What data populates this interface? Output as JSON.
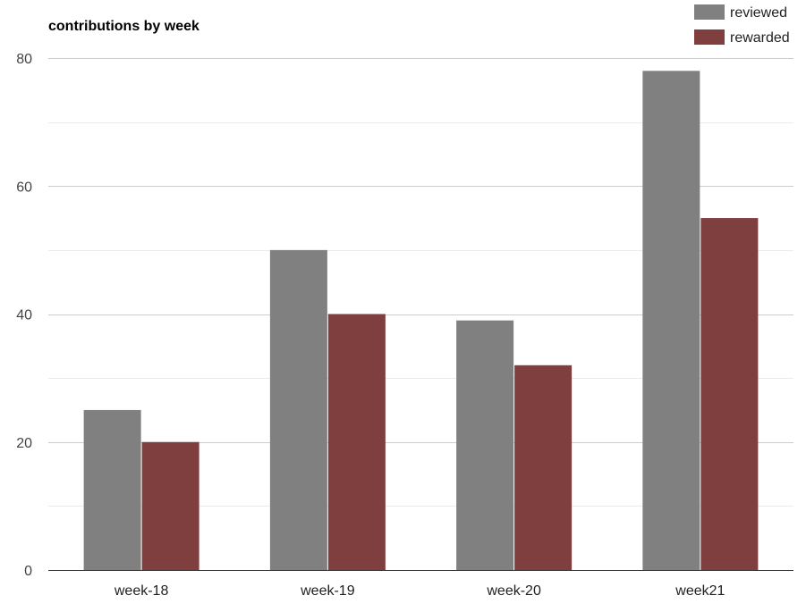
{
  "chart_data": {
    "type": "bar",
    "title": "contributions by week",
    "categories": [
      "week-18",
      "week-19",
      "week-20",
      "week21"
    ],
    "series": [
      {
        "name": "reviewed",
        "values": [
          25,
          50,
          39,
          78
        ],
        "color": "#808080"
      },
      {
        "name": "rewarded",
        "values": [
          20,
          40,
          32,
          55
        ],
        "color": "#7f3f3f"
      }
    ],
    "ylim": [
      0,
      80
    ],
    "yticks": [
      0,
      20,
      40,
      60,
      80
    ],
    "ytick_labels": [
      "0",
      "20",
      "40",
      "60",
      "80"
    ],
    "grid": true,
    "legend_position": "top-right"
  }
}
